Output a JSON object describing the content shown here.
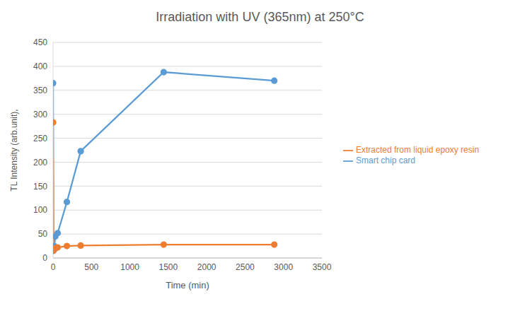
{
  "chart_data": {
    "type": "line",
    "title": "Irradiation with UV (365nm) at 250°C",
    "x_label": "Time (min)",
    "y_label": "TL Intensity (arb.unit),",
    "x": [
      0,
      5,
      15,
      30,
      60,
      180,
      360,
      1440,
      2880
    ],
    "series": [
      {
        "name": "Smart chip card",
        "color": "#5b9bd5",
        "marker": "circle",
        "line_style": "solid",
        "values": [
          365,
          20,
          25,
          45,
          52,
          117,
          223,
          388,
          370
        ]
      },
      {
        "name": "Extracted from liquid epoxy resin",
        "color": "#ed7d31",
        "marker": "circle",
        "line_style": "solid",
        "values": [
          283,
          15,
          18,
          20,
          22,
          25,
          26,
          28,
          28
        ]
      }
    ],
    "xlim": [
      0,
      3500
    ],
    "xticks": [
      0,
      500,
      1000,
      1500,
      2000,
      2500,
      3000,
      3500
    ],
    "ylim": [
      0,
      450
    ],
    "yticks": [
      0,
      50,
      100,
      150,
      200,
      250,
      300,
      350,
      400,
      450
    ],
    "grid": true,
    "legend": "right"
  }
}
